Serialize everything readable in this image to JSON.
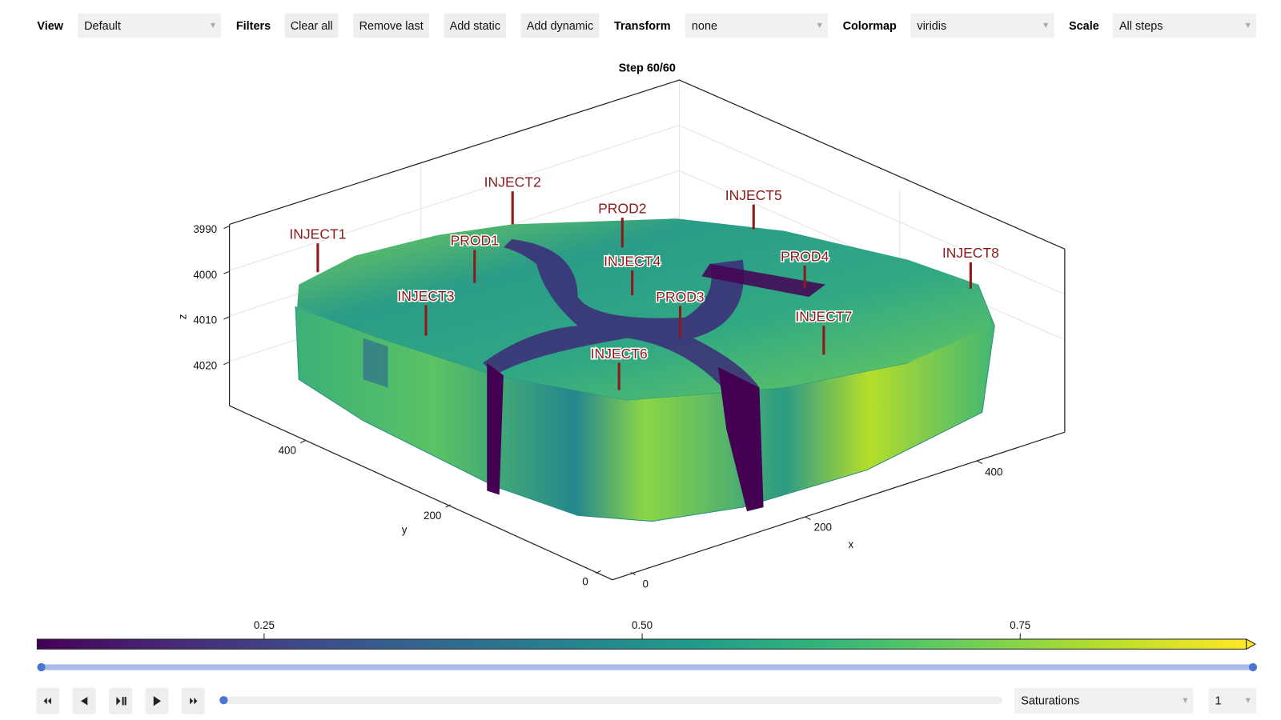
{
  "toolbar": {
    "view": {
      "label": "View",
      "value": "Default"
    },
    "filters": {
      "label": "Filters",
      "buttons": [
        "Clear all",
        "Remove last",
        "Add static",
        "Add dynamic"
      ]
    },
    "transform": {
      "label": "Transform",
      "value": "none"
    },
    "colormap": {
      "label": "Colormap",
      "value": "viridis"
    },
    "scale": {
      "label": "Scale",
      "value": "All steps"
    }
  },
  "plot": {
    "title": "Step 60/60",
    "axes": {
      "z": {
        "label": "z",
        "ticks": [
          "3990",
          "4000",
          "4010",
          "4020"
        ]
      },
      "y": {
        "label": "y",
        "ticks": [
          "400",
          "200",
          "0"
        ]
      },
      "x": {
        "label": "x",
        "ticks": [
          "0",
          "200",
          "400"
        ]
      }
    },
    "wells": [
      "INJECT1",
      "INJECT2",
      "PROD2",
      "INJECT5",
      "PROD1",
      "INJECT4",
      "PROD4",
      "INJECT8",
      "INJECT3",
      "PROD3",
      "INJECT7",
      "INJECT6"
    ],
    "colorbar": {
      "ticks": [
        "0.25",
        "0.50",
        "0.75"
      ]
    }
  },
  "controls": {
    "field": "Saturations",
    "index": "1"
  }
}
